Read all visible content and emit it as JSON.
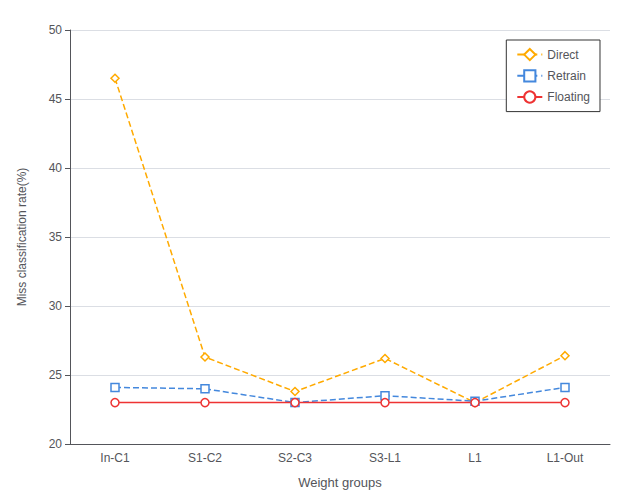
{
  "chart_data": {
    "type": "line",
    "xlabel": "Weight groups",
    "ylabel": "Miss classification rate(%)",
    "categories": [
      "In-C1",
      "S1-C2",
      "S2-C3",
      "S3-L1",
      "L1",
      "L1-Out"
    ],
    "series": [
      {
        "name": "Direct",
        "color": "#FFAA00",
        "values": [
          46.5,
          26.3,
          23.8,
          26.2,
          23.0,
          26.4
        ],
        "marker": "diamond",
        "line_style": "dashed"
      },
      {
        "name": "Retrain",
        "color": "#4488DD",
        "values": [
          24.1,
          24.0,
          23.0,
          23.5,
          23.1,
          24.1
        ],
        "marker": "square",
        "line_style": "dashed"
      },
      {
        "name": "Floating",
        "color": "#EE3333",
        "values": [
          23.0,
          23.0,
          23.0,
          23.0,
          23.0,
          23.0
        ],
        "marker": "circle",
        "line_style": "solid"
      }
    ],
    "ylim": [
      20,
      50
    ],
    "yticks": [
      20,
      25,
      30,
      35,
      40,
      45,
      50
    ],
    "grid": true,
    "legend": "upper right"
  }
}
